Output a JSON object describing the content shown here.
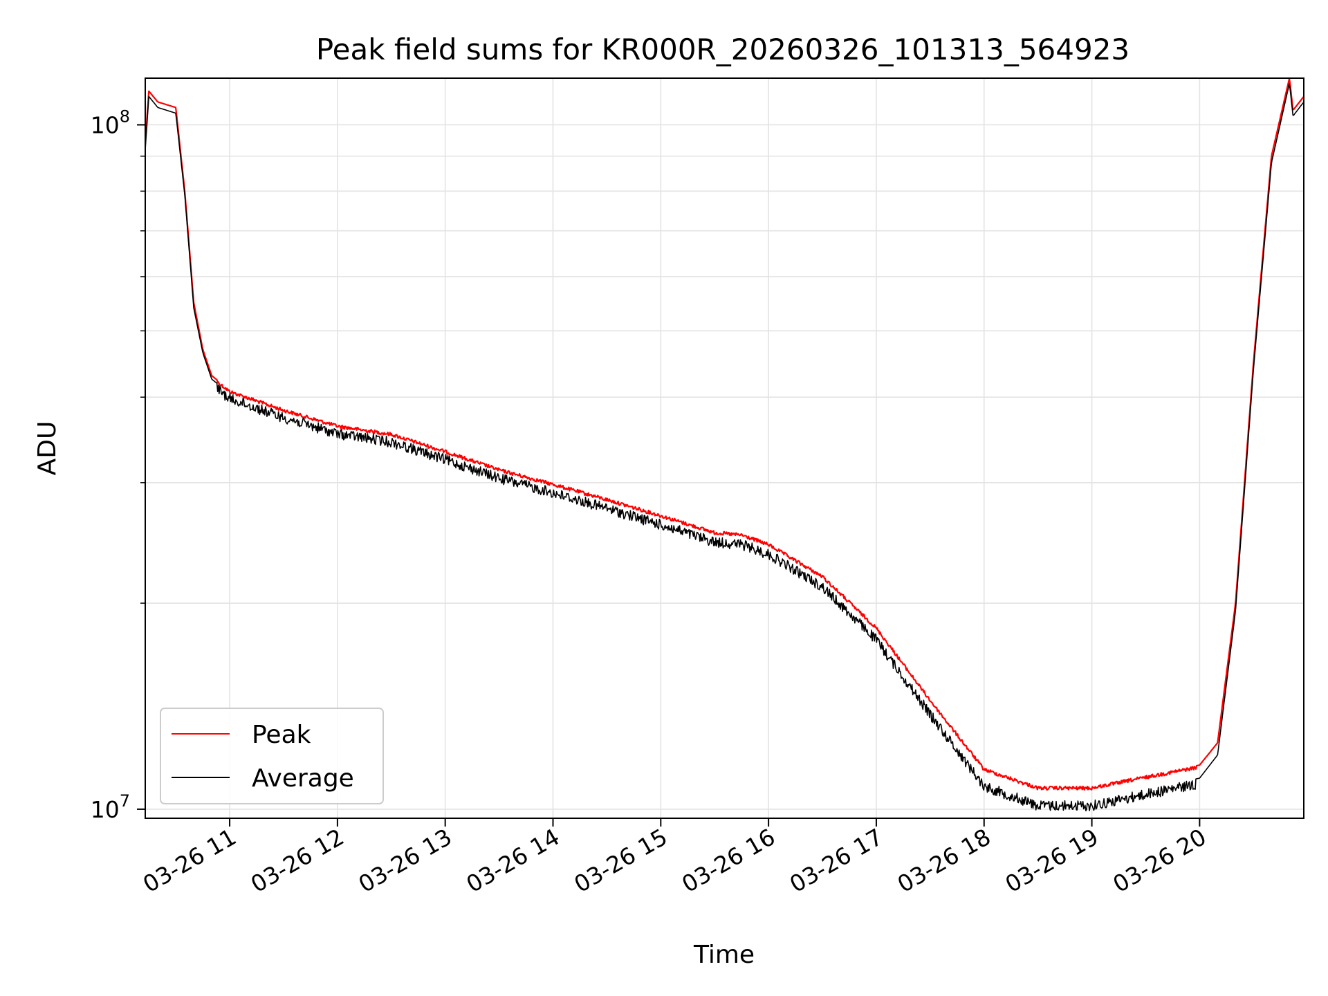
{
  "chart_data": {
    "type": "line",
    "title": "Peak field sums for KR000R_20260326_101313_564923",
    "xlabel": "Time",
    "ylabel": "ADU",
    "y_scale": "log",
    "ylim": [
      9700000,
      117000000
    ],
    "xlim": [
      "03-26 10:13",
      "03-26 20:58"
    ],
    "grid": true,
    "legend_position": "lower-left",
    "x_ticks": [
      "03-26 11",
      "03-26 12",
      "03-26 13",
      "03-26 14",
      "03-26 15",
      "03-26 16",
      "03-26 17",
      "03-26 18",
      "03-26 19",
      "03-26 20"
    ],
    "y_ticks": [
      {
        "value": 10000000,
        "base": "10",
        "exp": "7"
      },
      {
        "value": 100000000,
        "base": "10",
        "exp": "8"
      }
    ],
    "x": [
      "03-26 10:13",
      "03-26 10:15",
      "03-26 10:20",
      "03-26 10:30",
      "03-26 10:35",
      "03-26 10:40",
      "03-26 10:45",
      "03-26 10:50",
      "03-26 11:00",
      "03-26 11:30",
      "03-26 12:00",
      "03-26 12:30",
      "03-26 13:00",
      "03-26 13:30",
      "03-26 14:00",
      "03-26 14:30",
      "03-26 15:00",
      "03-26 15:30",
      "03-26 15:45",
      "03-26 16:00",
      "03-26 16:30",
      "03-26 17:00",
      "03-26 17:30",
      "03-26 18:00",
      "03-26 18:30",
      "03-26 19:00",
      "03-26 19:30",
      "03-26 20:00",
      "03-26 20:10",
      "03-26 20:20",
      "03-26 20:30",
      "03-26 20:40",
      "03-26 20:50",
      "03-26 20:52",
      "03-26 20:58"
    ],
    "series": [
      {
        "name": "Peak",
        "color": "#ff0000",
        "values": [
          94000000,
          112000000,
          108000000,
          106000000,
          80000000,
          55000000,
          47000000,
          43000000,
          41000000,
          38500000,
          36500000,
          35500000,
          33500000,
          31500000,
          30000000,
          28500000,
          27000000,
          25500000,
          25300000,
          24500000,
          22000000,
          18500000,
          14500000,
          11500000,
          10800000,
          10800000,
          11200000,
          11600000,
          12500000,
          20000000,
          45000000,
          90000000,
          117000000,
          105000000,
          110000000
        ]
      },
      {
        "name": "Average",
        "color": "#000000",
        "values": [
          92000000,
          110000000,
          106000000,
          104000000,
          79000000,
          54000000,
          46500000,
          42500000,
          40500000,
          38000000,
          36000000,
          35000000,
          33000000,
          31000000,
          29500000,
          28000000,
          26500000,
          25000000,
          24800000,
          24000000,
          21500000,
          18000000,
          14000000,
          11000000,
          10300000,
          10300000,
          10700000,
          11100000,
          12000000,
          19500000,
          44000000,
          88000000,
          115000000,
          103000000,
          108000000
        ]
      }
    ]
  }
}
